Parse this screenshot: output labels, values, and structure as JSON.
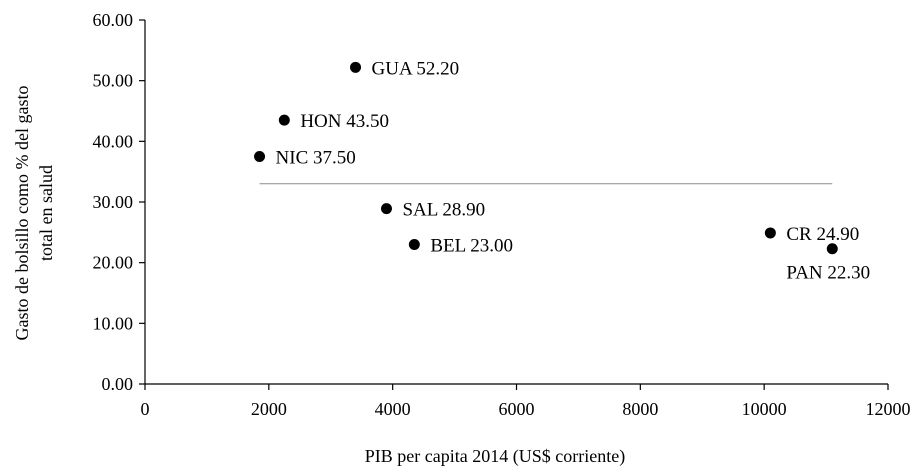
{
  "chart_data": {
    "type": "scatter",
    "title": "",
    "xlabel": "PIB per capita 2014 (US$ corriente)",
    "ylabel_lines": [
      "Gasto de bolsillo como % del gasto",
      "total en salud"
    ],
    "xlim": [
      0,
      12000
    ],
    "ylim": [
      0,
      60
    ],
    "x_ticks": [
      {
        "value": 0,
        "label": "0"
      },
      {
        "value": 2000,
        "label": "2000"
      },
      {
        "value": 4000,
        "label": "4000"
      },
      {
        "value": 6000,
        "label": "6000"
      },
      {
        "value": 8000,
        "label": "8000"
      },
      {
        "value": 10000,
        "label": "10000"
      },
      {
        "value": 12000,
        "label": "12000"
      }
    ],
    "y_ticks": [
      {
        "value": 0,
        "label": "0.00"
      },
      {
        "value": 10,
        "label": "10.00"
      },
      {
        "value": 20,
        "label": "20.00"
      },
      {
        "value": 30,
        "label": "30.00"
      },
      {
        "value": 40,
        "label": "40.00"
      },
      {
        "value": 50,
        "label": "50.00"
      },
      {
        "value": 60,
        "label": "60.00"
      }
    ],
    "points": [
      {
        "label": "GUA 52.20",
        "x": 3400,
        "y": 52.2,
        "label_pos": "right"
      },
      {
        "label": "HON 43.50",
        "x": 2250,
        "y": 43.5,
        "label_pos": "right"
      },
      {
        "label": "NIC 37.50",
        "x": 1850,
        "y": 37.5,
        "label_pos": "right"
      },
      {
        "label": "SAL 28.90",
        "x": 3900,
        "y": 28.9,
        "label_pos": "right"
      },
      {
        "label": "BEL 23.00",
        "x": 4350,
        "y": 23.0,
        "label_pos": "right"
      },
      {
        "label": "CR 24.90",
        "x": 10100,
        "y": 24.9,
        "label_pos": "right"
      },
      {
        "label": "PAN 22.30",
        "x": 11100,
        "y": 22.3,
        "label_pos": "below"
      }
    ],
    "reference_line": {
      "y": 33.0,
      "x_start": 1850,
      "x_end": 11100
    },
    "marker_color": "#000000",
    "reference_line_color": "#8c8c8c",
    "grid": false,
    "legend": "none"
  }
}
